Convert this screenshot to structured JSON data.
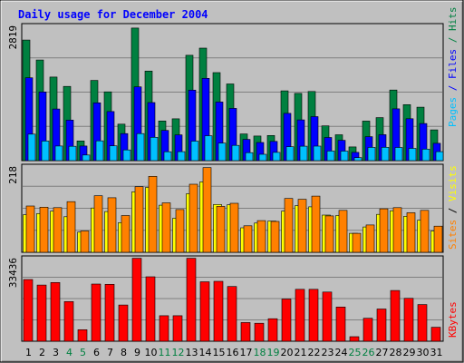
{
  "title": "Daily usage for December 2004",
  "chart_data": [
    {
      "type": "bar",
      "panel": "top",
      "categories": [
        "1",
        "2",
        "3",
        "4",
        "5",
        "6",
        "7",
        "8",
        "9",
        "10",
        "11",
        "12",
        "13",
        "14",
        "15",
        "16",
        "17",
        "18",
        "19",
        "20",
        "21",
        "22",
        "23",
        "24",
        "25",
        "26",
        "27",
        "28",
        "29",
        "30",
        "31"
      ],
      "weekend_days": [
        "4",
        "5",
        "11",
        "12",
        "18",
        "19",
        "25",
        "26"
      ],
      "ymax_label": "2819",
      "ylim": [
        0,
        2819
      ],
      "grid": true,
      "right_label": [
        "Pages",
        "Files",
        "Hits"
      ],
      "series": [
        {
          "name": "Hits",
          "color": "#008040",
          "values": [
            2515,
            2099,
            1743,
            1548,
            411,
            1672,
            1435,
            761,
            2765,
            1867,
            827,
            873,
            2197,
            2346,
            1836,
            1599,
            557,
            512,
            524,
            1455,
            1402,
            1442,
            725,
            540,
            285,
            825,
            896,
            1472,
            1167,
            1115,
            642
          ]
        },
        {
          "name": "Files",
          "color": "#0000ff",
          "values": [
            1727,
            1432,
            1076,
            846,
            304,
            1205,
            1023,
            563,
            1539,
            1211,
            630,
            537,
            1470,
            1716,
            1223,
            1089,
            443,
            378,
            402,
            986,
            849,
            918,
            483,
            424,
            173,
            499,
            541,
            1081,
            874,
            773,
            362
          ]
        },
        {
          "name": "Pages",
          "color": "#00c0ff",
          "values": [
            553,
            409,
            305,
            298,
            117,
            412,
            309,
            224,
            564,
            486,
            185,
            188,
            406,
            519,
            366,
            317,
            167,
            133,
            172,
            290,
            301,
            303,
            200,
            199,
            62,
            276,
            279,
            275,
            256,
            240,
            188
          ]
        }
      ]
    },
    {
      "type": "bar",
      "panel": "middle",
      "categories": [
        "1",
        "2",
        "3",
        "4",
        "5",
        "6",
        "7",
        "8",
        "9",
        "10",
        "11",
        "12",
        "13",
        "14",
        "15",
        "16",
        "17",
        "18",
        "19",
        "20",
        "21",
        "22",
        "23",
        "24",
        "25",
        "26",
        "27",
        "28",
        "29",
        "30",
        "31"
      ],
      "ymax_label": "218",
      "ylim": [
        0,
        218
      ],
      "grid": true,
      "right_label": [
        "Sites",
        "/",
        "Visits"
      ],
      "series": [
        {
          "name": "Visits",
          "color": "#ffff00",
          "values": [
            95,
            98,
            104,
            90,
            51,
            112,
            103,
            75,
            153,
            164,
            119,
            86,
            148,
            178,
            121,
            120,
            62,
            74,
            79,
            104,
            118,
            115,
            94,
            93,
            48,
            64,
            96,
            105,
            91,
            81,
            54
          ]
        },
        {
          "name": "Sites",
          "color": "#ff8000",
          "values": [
            117,
            114,
            113,
            128,
            54,
            143,
            138,
            93,
            166,
            192,
            125,
            108,
            172,
            214,
            116,
            124,
            67,
            80,
            78,
            136,
            134,
            142,
            92,
            106,
            48,
            69,
            110,
            113,
            100,
            106,
            66
          ]
        }
      ]
    },
    {
      "type": "bar",
      "panel": "bottom",
      "categories": [
        "1",
        "2",
        "3",
        "4",
        "5",
        "6",
        "7",
        "8",
        "9",
        "10",
        "11",
        "12",
        "13",
        "14",
        "15",
        "16",
        "17",
        "18",
        "19",
        "20",
        "21",
        "22",
        "23",
        "24",
        "25",
        "26",
        "27",
        "28",
        "29",
        "30",
        "31"
      ],
      "ymax_label": "33436",
      "ylim": [
        0,
        33436
      ],
      "grid": true,
      "right_label": [
        "KBytes"
      ],
      "series": [
        {
          "name": "KBytes",
          "color": "#ff0000",
          "values": [
            24700,
            22500,
            23500,
            15900,
            4600,
            22900,
            22800,
            14500,
            33200,
            25800,
            10200,
            10200,
            33200,
            23800,
            24000,
            21900,
            7500,
            7200,
            9000,
            16900,
            20800,
            20800,
            19700,
            13700,
            1800,
            9200,
            12900,
            20300,
            17200,
            14700,
            5600
          ]
        }
      ]
    }
  ]
}
